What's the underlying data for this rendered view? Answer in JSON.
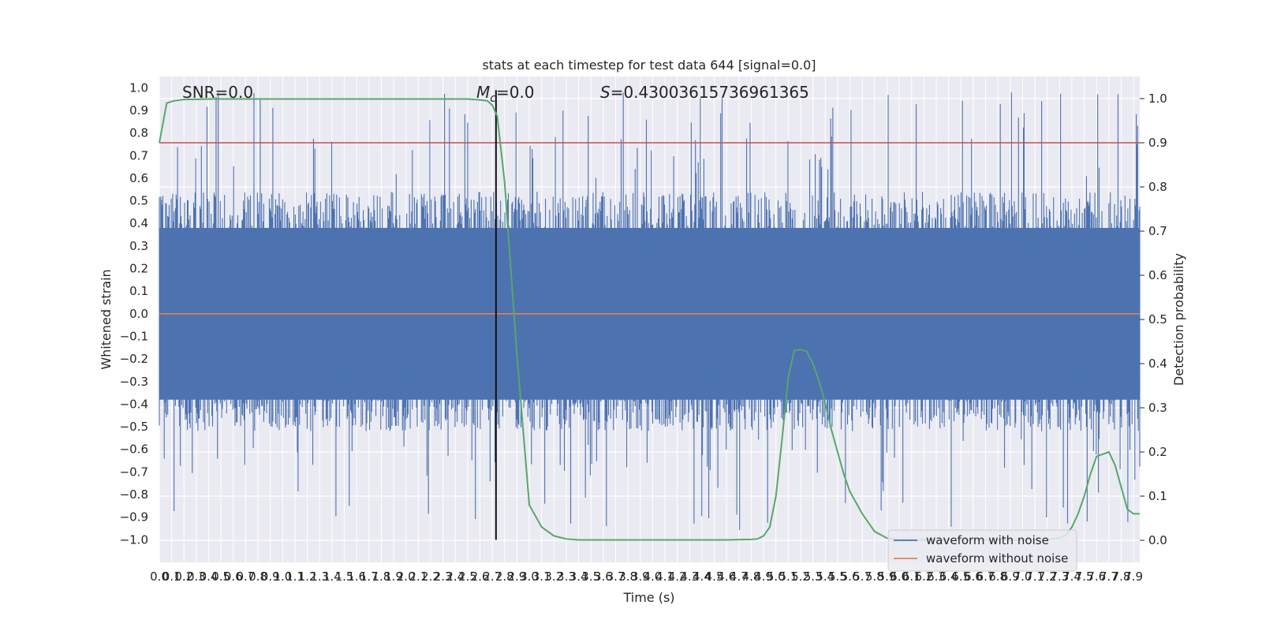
{
  "chart_data": {
    "type": "line",
    "title": "stats at each timestep for test data 644 [signal=0.0]",
    "xlabel": "Time (s)",
    "ylabel_left": "Whitened strain",
    "ylabel_right": "Detection probability",
    "xlim": [
      0.0,
      7.95
    ],
    "ylim_left": [
      -1.1,
      1.05
    ],
    "ylim_right": [
      -0.05,
      1.05
    ],
    "x_ticks": [
      "0.0",
      "0.1",
      "0.2",
      "0.3",
      "0.4",
      "0.5",
      "0.6",
      "0.7",
      "0.8",
      "0.9",
      "1.0",
      "1.1",
      "1.2",
      "1.3",
      "1.4",
      "1.5",
      "1.6",
      "1.7",
      "1.8",
      "1.9",
      "2.0",
      "2.1",
      "2.2",
      "2.3",
      "2.4",
      "2.5",
      "2.6",
      "2.7",
      "2.8",
      "2.9",
      "3.0",
      "3.1",
      "3.2",
      "3.3",
      "3.4",
      "3.5",
      "3.6",
      "3.7",
      "3.8",
      "3.9",
      "4.0",
      "4.1",
      "4.2",
      "4.3",
      "4.4",
      "4.5",
      "4.6",
      "4.7",
      "4.8",
      "4.9",
      "5.0",
      "5.1",
      "5.2",
      "5.3",
      "5.4",
      "5.5",
      "5.6",
      "5.7",
      "5.8",
      "5.9",
      "6.0",
      "6.1",
      "6.2",
      "6.3",
      "6.4",
      "6.5",
      "6.6",
      "6.7",
      "6.8",
      "6.9",
      "7.0",
      "7.1",
      "7.2",
      "7.3",
      "7.4",
      "7.5",
      "7.6",
      "7.7",
      "7.8",
      "7.9"
    ],
    "y_ticks_left": [
      "1.0",
      "0.9",
      "0.8",
      "0.7",
      "0.6",
      "0.5",
      "0.4",
      "0.3",
      "0.2",
      "0.1",
      "0.0",
      "−0.1",
      "−0.2",
      "−0.3",
      "−0.4",
      "−0.5",
      "−0.6",
      "−0.7",
      "−0.8",
      "−0.9",
      "−1.0"
    ],
    "y_ticks_right": [
      "1.0",
      "0.9",
      "0.8",
      "0.7",
      "0.6",
      "0.5",
      "0.4",
      "0.3",
      "0.2",
      "0.1",
      "0.0"
    ],
    "annotations": {
      "snr": "SNR=0.0",
      "mc_symbol": "M",
      "mc_sub": "c",
      "mc_value": "=0.0",
      "s_symbol": "S",
      "s_value": "=0.43003615736961365"
    },
    "threshold_right": 0.9,
    "marker_time": 2.73,
    "grid": true,
    "legend_position": "lower right",
    "series": [
      {
        "name": "waveform with noise",
        "color": "#4c72b0",
        "axis": "left",
        "note_style": "dense noise, approx ±0.4 with spikes up to ±1.0"
      },
      {
        "name": "waveform without noise",
        "color": "#dd8452",
        "axis": "left",
        "values_constant": 0.0
      },
      {
        "color": "#55a868",
        "axis": "right",
        "x": [
          0.0,
          0.06,
          0.12,
          0.2,
          0.4,
          1.0,
          2.0,
          2.5,
          2.6,
          2.66,
          2.7,
          2.74,
          2.8,
          2.9,
          3.0,
          3.1,
          3.2,
          3.3,
          3.4,
          3.6,
          3.8,
          4.0,
          4.2,
          4.4,
          4.6,
          4.8,
          4.85,
          4.9,
          4.95,
          5.0,
          5.05,
          5.1,
          5.15,
          5.2,
          5.25,
          5.3,
          5.35,
          5.4,
          5.45,
          5.5,
          5.55,
          5.6,
          5.7,
          5.8,
          5.9,
          6.0,
          6.2,
          6.5,
          7.0,
          7.2,
          7.3,
          7.35,
          7.4,
          7.45,
          7.5,
          7.55,
          7.6,
          7.65,
          7.7,
          7.75,
          7.8,
          7.85,
          7.9,
          7.95
        ],
        "y": [
          0.9,
          0.99,
          0.995,
          0.998,
          0.999,
          0.999,
          0.999,
          0.999,
          0.997,
          0.995,
          0.985,
          0.96,
          0.81,
          0.42,
          0.08,
          0.03,
          0.01,
          0.003,
          0.001,
          0.001,
          0.001,
          0.001,
          0.001,
          0.001,
          0.001,
          0.002,
          0.003,
          0.01,
          0.03,
          0.1,
          0.23,
          0.37,
          0.43,
          0.432,
          0.428,
          0.4,
          0.36,
          0.31,
          0.25,
          0.2,
          0.15,
          0.11,
          0.06,
          0.02,
          0.005,
          0.001,
          0.001,
          0.001,
          0.001,
          0.002,
          0.005,
          0.012,
          0.03,
          0.06,
          0.1,
          0.15,
          0.19,
          0.195,
          0.2,
          0.17,
          0.12,
          0.07,
          0.06,
          0.06
        ]
      }
    ]
  }
}
